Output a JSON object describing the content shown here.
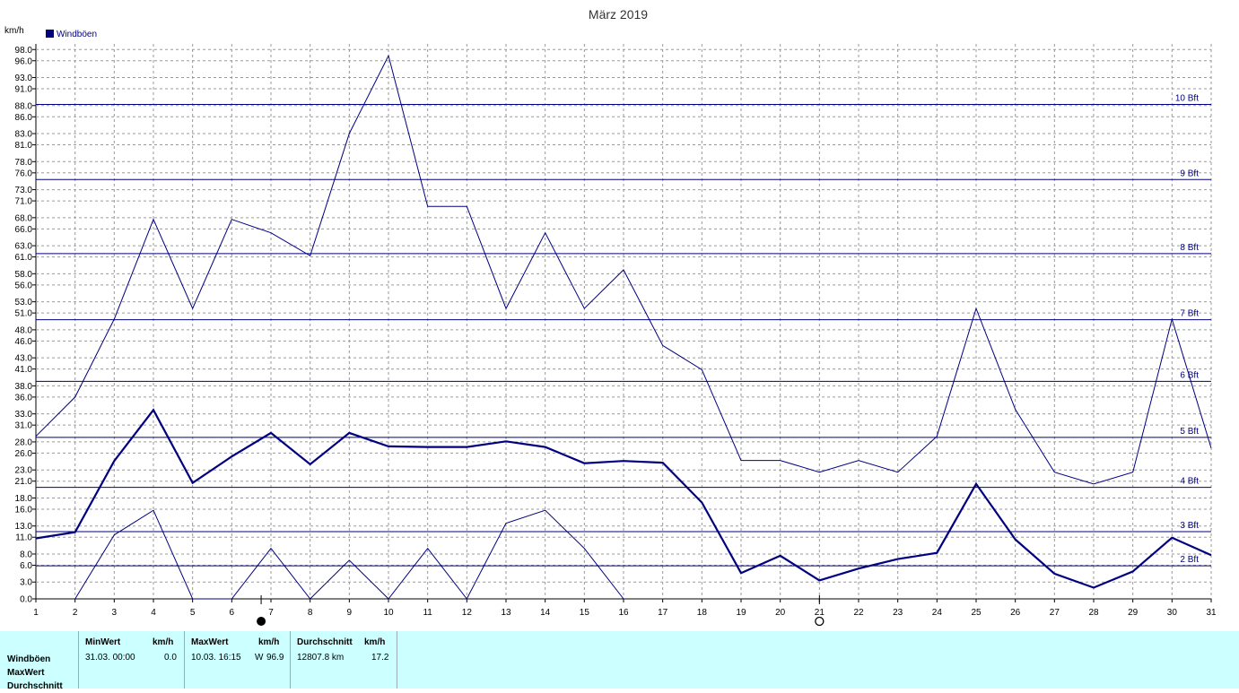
{
  "chart_data": {
    "type": "line",
    "title": "März 2019",
    "ylabel": "km/h",
    "legend": [
      {
        "name": "Windböen",
        "color": "#000080"
      }
    ],
    "x": [
      1,
      2,
      3,
      4,
      5,
      6,
      7,
      8,
      9,
      10,
      11,
      12,
      13,
      14,
      15,
      16,
      17,
      18,
      19,
      20,
      21,
      22,
      23,
      24,
      25,
      26,
      27,
      28,
      29,
      30,
      31
    ],
    "ylim": [
      0,
      99
    ],
    "yticks": [
      "0.0",
      "3.0",
      "6.0",
      "8.0",
      "11.0",
      "13.0",
      "16.0",
      "18.0",
      "21.0",
      "23.0",
      "26.0",
      "28.0",
      "31.0",
      "33.0",
      "36.0",
      "38.0",
      "41.0",
      "43.0",
      "46.0",
      "48.0",
      "51.0",
      "53.0",
      "56.0",
      "58.0",
      "61.0",
      "63.0",
      "66.0",
      "68.0",
      "71.0",
      "73.0",
      "76.0",
      "78.0",
      "81.0",
      "83.0",
      "86.0",
      "88.0",
      "91.0",
      "93.0",
      "96.0",
      "98.0"
    ],
    "beaufort": [
      {
        "label": "2 Bft",
        "value": 5.9
      },
      {
        "label": "3 Bft",
        "value": 12.0
      },
      {
        "label": "4 Bft",
        "value": 19.9
      },
      {
        "label": "5 Bft",
        "value": 28.8
      },
      {
        "label": "6 Bft",
        "value": 38.8
      },
      {
        "label": "7 Bft",
        "value": 49.8
      },
      {
        "label": "8 Bft",
        "value": 61.6
      },
      {
        "label": "9 Bft",
        "value": 74.8
      },
      {
        "label": "10 Bft",
        "value": 88.2
      }
    ],
    "series": [
      {
        "role": "max",
        "values": [
          29.0,
          36.0,
          49.9,
          67.7,
          51.8,
          67.7,
          65.3,
          61.2,
          83.0,
          96.9,
          70.0,
          70.0,
          51.8,
          65.3,
          51.8,
          58.7,
          45.2,
          40.9,
          24.7,
          24.7,
          22.6,
          24.7,
          22.6,
          29.0,
          51.8,
          33.8,
          22.6,
          20.5,
          22.6,
          49.9,
          26.9
        ]
      },
      {
        "role": "avg",
        "values": [
          10.8,
          11.9,
          24.6,
          33.7,
          20.7,
          25.4,
          29.6,
          24.0,
          29.6,
          27.2,
          27.1,
          27.1,
          28.1,
          27.1,
          24.2,
          24.6,
          24.3,
          17.2,
          4.6,
          7.7,
          3.3,
          5.4,
          7.1,
          8.2,
          20.5,
          10.6,
          4.5,
          2.0,
          4.9,
          10.9,
          7.8
        ]
      },
      {
        "role": "min",
        "values": [
          null,
          0.0,
          11.4,
          15.8,
          0.0,
          0.0,
          9.0,
          0.0,
          6.9,
          0.0,
          9.0,
          0.0,
          13.5,
          15.8,
          9.0,
          0.0,
          null,
          null,
          null,
          null,
          null,
          null,
          null,
          null,
          null,
          null,
          null,
          null,
          null,
          null,
          null
        ]
      }
    ],
    "annotations": [
      {
        "name": "new-moon",
        "day": 6.75
      },
      {
        "name": "full-moon",
        "day": 21
      }
    ]
  },
  "stats": {
    "rows": [
      "Windböen",
      "MaxWert",
      "Durchschnitt"
    ],
    "min": {
      "header": "MinWert",
      "unit": "km/h",
      "date": "31.03.  00:00",
      "value": "0.0"
    },
    "max": {
      "header": "MaxWert",
      "unit": "km/h",
      "date": "10.03.  16:15",
      "dir": "W",
      "value": "96.9"
    },
    "avg": {
      "header": "Durchschnitt",
      "unit": "km/h",
      "distance": "12807.8 km",
      "value": "17.2"
    }
  }
}
